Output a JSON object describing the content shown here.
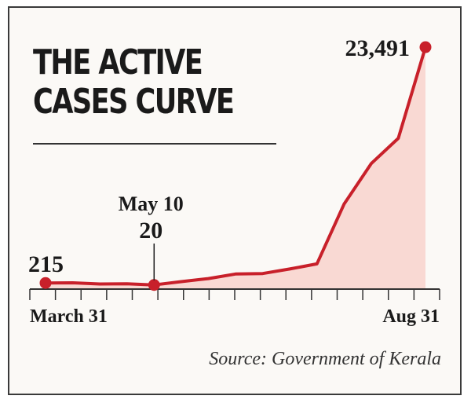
{
  "chart_data": {
    "type": "area",
    "title": "THE ACTIVE CASES CURVE",
    "source": "Source: Government of Kerala",
    "x_start_label": "March 31",
    "x_end_label": "Aug 31",
    "tick_count": 17,
    "ylim": [
      0,
      24500
    ],
    "points": [
      {
        "x": 0,
        "y": 215
      },
      {
        "x": 1,
        "y": 230
      },
      {
        "x": 2,
        "y": 120
      },
      {
        "x": 3,
        "y": 140
      },
      {
        "x": 4,
        "y": 20
      },
      {
        "x": 5,
        "y": 350
      },
      {
        "x": 6,
        "y": 650
      },
      {
        "x": 7,
        "y": 1100
      },
      {
        "x": 8,
        "y": 1150
      },
      {
        "x": 9,
        "y": 1600
      },
      {
        "x": 10,
        "y": 2100
      },
      {
        "x": 11,
        "y": 8000
      },
      {
        "x": 12,
        "y": 12000
      },
      {
        "x": 13,
        "y": 14500
      },
      {
        "x": 14,
        "y": 23491
      }
    ],
    "annotations": [
      {
        "point_index": 0,
        "value_label": "215"
      },
      {
        "point_index": 4,
        "date_label": "May 10",
        "value_label": "20"
      },
      {
        "point_index": 14,
        "value_label": "23,491"
      }
    ],
    "colors": {
      "line": "#c8202a",
      "fill": "#f9d9d3",
      "axis": "#333333"
    }
  }
}
